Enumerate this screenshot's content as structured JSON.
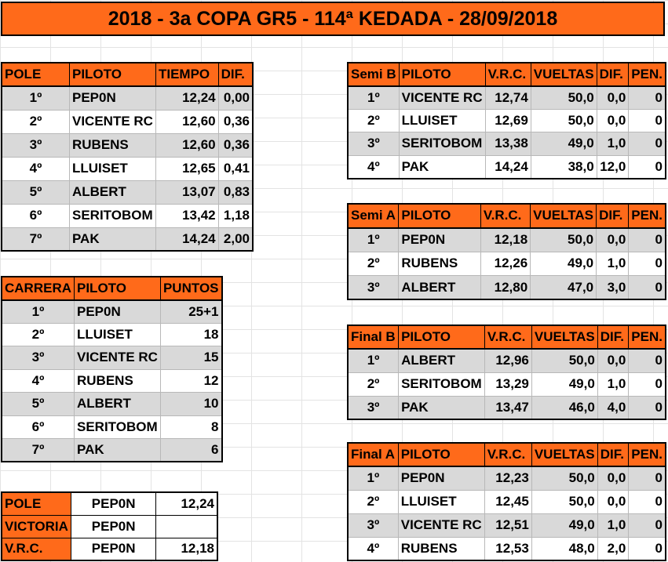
{
  "title": "2018 - 3a COPA GR5 - 114ª KEDADA - 28/09/2018",
  "pole": {
    "headers": [
      "POLE",
      "PILOTO",
      "TIEMPO",
      "DIF."
    ],
    "rows": [
      [
        "1º",
        "PEP0N",
        "12,24",
        "0,00"
      ],
      [
        "2º",
        "VICENTE RC",
        "12,60",
        "0,36"
      ],
      [
        "3º",
        "RUBENS",
        "12,60",
        "0,36"
      ],
      [
        "4º",
        "LLUISET",
        "12,65",
        "0,41"
      ],
      [
        "5º",
        "ALBERT",
        "13,07",
        "0,83"
      ],
      [
        "6º",
        "SERITOBOM",
        "13,42",
        "1,18"
      ],
      [
        "7º",
        "PAK",
        "14,24",
        "2,00"
      ]
    ]
  },
  "carrera": {
    "headers": [
      "CARRERA",
      "PILOTO",
      "PUNTOS"
    ],
    "rows": [
      [
        "1º",
        "PEP0N",
        "25+1"
      ],
      [
        "2º",
        "LLUISET",
        "18"
      ],
      [
        "3º",
        "VICENTE RC",
        "15"
      ],
      [
        "4º",
        "RUBENS",
        "12"
      ],
      [
        "5º",
        "ALBERT",
        "10"
      ],
      [
        "6º",
        "SERITOBOM",
        "8"
      ],
      [
        "7º",
        "PAK",
        "6"
      ]
    ]
  },
  "summary": {
    "rows": [
      [
        "POLE",
        "PEP0N",
        "12,24"
      ],
      [
        "VICTORIA",
        "PEP0N",
        ""
      ],
      [
        "V.R.C.",
        "PEP0N",
        "12,18"
      ]
    ]
  },
  "semi_b": {
    "headers": [
      "Semi B",
      "PILOTO",
      "V.R.C.",
      "VUELTAS",
      "DIF.",
      "PEN."
    ],
    "rows": [
      [
        "1º",
        "VICENTE RC",
        "12,74",
        "50,0",
        "0,0",
        "0"
      ],
      [
        "2º",
        "LLUISET",
        "12,69",
        "50,0",
        "0,0",
        "0"
      ],
      [
        "3º",
        "SERITOBOM",
        "13,38",
        "49,0",
        "1,0",
        "0"
      ],
      [
        "4º",
        "PAK",
        "14,24",
        "38,0",
        "12,0",
        "0"
      ]
    ]
  },
  "semi_a": {
    "headers": [
      "Semi A",
      "PILOTO",
      "V.R.C.",
      "VUELTAS",
      "DIF.",
      "PEN."
    ],
    "rows": [
      [
        "1º",
        "PEP0N",
        "12,18",
        "50,0",
        "0,0",
        "0"
      ],
      [
        "2º",
        "RUBENS",
        "12,26",
        "49,0",
        "1,0",
        "0"
      ],
      [
        "3º",
        "ALBERT",
        "12,80",
        "47,0",
        "3,0",
        "0"
      ]
    ]
  },
  "final_b": {
    "headers": [
      "Final B",
      "PILOTO",
      "V.R.C.",
      "VUELTAS",
      "DIF.",
      "PEN."
    ],
    "rows": [
      [
        "1º",
        "ALBERT",
        "12,96",
        "50,0",
        "0,0",
        "0"
      ],
      [
        "2º",
        "SERITOBOM",
        "13,29",
        "49,0",
        "1,0",
        "0"
      ],
      [
        "3º",
        "PAK",
        "13,47",
        "46,0",
        "4,0",
        "0"
      ]
    ]
  },
  "final_a": {
    "headers": [
      "Final A",
      "PILOTO",
      "V.R.C.",
      "VUELTAS",
      "DIF.",
      "PEN."
    ],
    "rows": [
      [
        "1º",
        "PEP0N",
        "12,23",
        "50,0",
        "0,0",
        "0"
      ],
      [
        "2º",
        "LLUISET",
        "12,45",
        "50,0",
        "0,0",
        "0"
      ],
      [
        "3º",
        "VICENTE RC",
        "12,51",
        "49,0",
        "1,0",
        "0"
      ],
      [
        "4º",
        "RUBENS",
        "12,53",
        "48,0",
        "2,0",
        "0"
      ]
    ]
  },
  "colors": {
    "header": "#ff6a1a",
    "stripe": "#d9d9d9"
  }
}
